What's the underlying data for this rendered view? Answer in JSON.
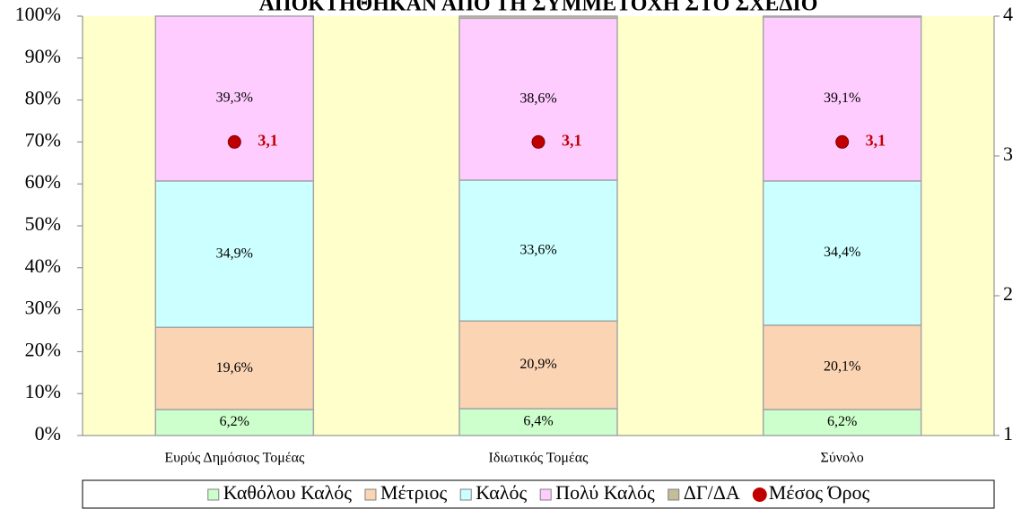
{
  "chart_data": {
    "type": "bar",
    "stacked": true,
    "title": "ΑΠΟΚΤΗΘΗΚΑΝ ΑΠΟ ΤΗ ΣΥΜΜΕΤΟΧΗ ΣΤΟ ΣΧΕΔΙΟ",
    "categories": [
      "Ευρύς Δημόσιος Τομέας",
      "Ιδιωτικός Τομέας",
      "Σύνολο"
    ],
    "series": [
      {
        "name": "Καθόλου Καλός",
        "color": "#ccffcc",
        "values": [
          6.2,
          6.4,
          6.2
        ],
        "value_labels": [
          "6,2%",
          "6,4%",
          "6,2%"
        ]
      },
      {
        "name": "Μέτριος",
        "color": "#fbd4b4",
        "values": [
          19.6,
          20.9,
          20.1
        ],
        "value_labels": [
          "19,6%",
          "20,9%",
          "20,1%"
        ]
      },
      {
        "name": "Καλός",
        "color": "#ccffff",
        "values": [
          34.9,
          33.6,
          34.4
        ],
        "value_labels": [
          "34,9%",
          "33,6%",
          "34,4%"
        ]
      },
      {
        "name": "Πολύ Καλός",
        "color": "#ffccff",
        "values": [
          39.3,
          38.6,
          39.1
        ],
        "value_labels": [
          "39,3%",
          "38,6%",
          "39,1%"
        ]
      },
      {
        "name": "ΔΓ/ΔΑ",
        "color": "#c4bd97",
        "values": [
          0,
          0.5,
          0.2
        ]
      },
      {
        "name": "Μέσος Όρος",
        "color": "#c00000",
        "type": "scatter",
        "axis": "y2",
        "values": [
          3.1,
          3.1,
          3.1
        ],
        "value_labels": [
          "3,1",
          "3,1",
          "3,1"
        ]
      }
    ],
    "ylim": [
      0,
      100
    ],
    "yticks": [
      {
        "value": 0,
        "label": "0%"
      },
      {
        "value": 10,
        "label": "10%"
      },
      {
        "value": 20,
        "label": "20%"
      },
      {
        "value": 30,
        "label": "30%"
      },
      {
        "value": 40,
        "label": "40%"
      },
      {
        "value": 50,
        "label": "50%"
      },
      {
        "value": 60,
        "label": "60%"
      },
      {
        "value": 70,
        "label": "70%"
      },
      {
        "value": 80,
        "label": "80%"
      },
      {
        "value": 90,
        "label": "90%"
      },
      {
        "value": 100,
        "label": "100%"
      }
    ],
    "y2lim": [
      1,
      4
    ],
    "y2ticks": [
      1,
      2,
      3,
      4
    ],
    "background": "#ffffcc",
    "legend": "bottom"
  }
}
